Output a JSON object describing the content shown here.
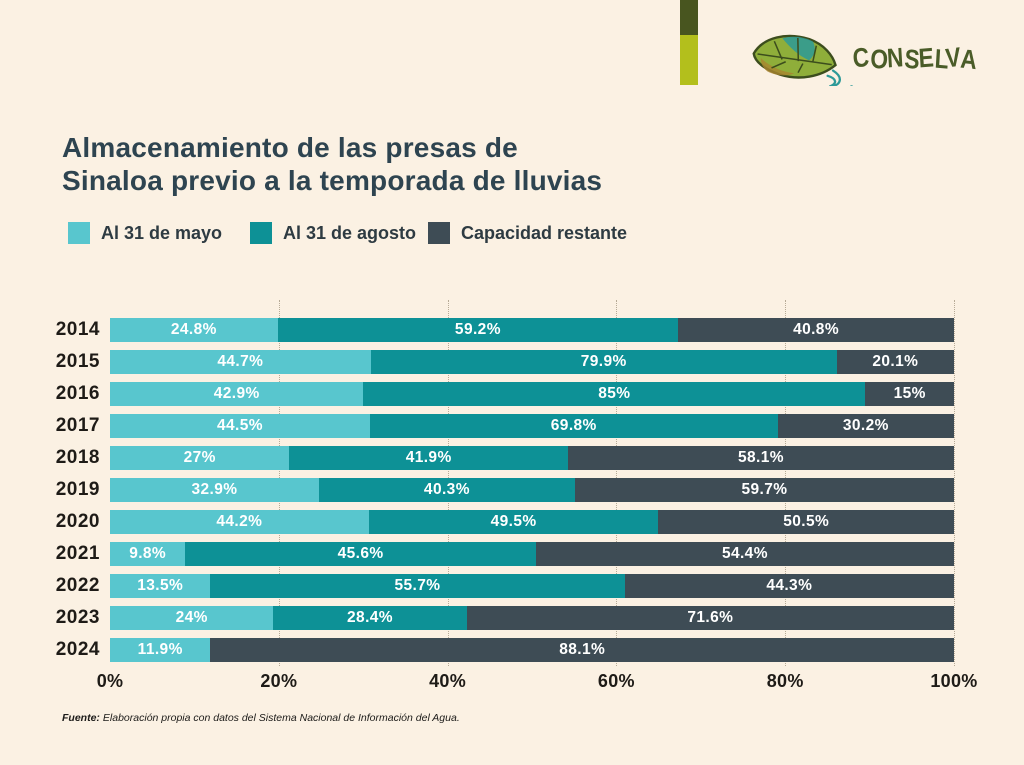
{
  "brand": {
    "name": "CONSELVA",
    "text_color": "#4a5c28",
    "accent_bar_dark": "#48551f",
    "accent_bar_lime": "#b3bf1c"
  },
  "header": {
    "title_line1": "Almacenamiento de las presas de",
    "title_line2": "Sinaloa previo a la temporada de lluvias"
  },
  "legend": [
    {
      "label": "Al 31 de mayo",
      "color": "#58c6ce"
    },
    {
      "label": "Al 31 de agosto",
      "color": "#0d9196"
    },
    {
      "label": "Capacidad restante",
      "color": "#3e4c55"
    }
  ],
  "chart_data": {
    "type": "bar",
    "orientation": "horizontal-stacked",
    "title": "Almacenamiento de las presas de Sinaloa previo a la temporada de lluvias",
    "categories": [
      "2014",
      "2015",
      "2016",
      "2017",
      "2018",
      "2019",
      "2020",
      "2021",
      "2022",
      "2023",
      "2024"
    ],
    "series": [
      {
        "name": "Al 31 de mayo",
        "color": "#58c6ce",
        "values": [
          24.8,
          44.7,
          42.9,
          44.5,
          27,
          32.9,
          44.2,
          9.8,
          13.5,
          24,
          11.9
        ],
        "labels": [
          "24.8%",
          "44.7%",
          "42.9%",
          "44.5%",
          "27%",
          "32.9%",
          "44.2%",
          "9.8%",
          "13.5%",
          "24%",
          "11.9%"
        ]
      },
      {
        "name": "Al 31 de agosto",
        "color": "#0d9196",
        "values": [
          59.2,
          79.9,
          85,
          69.8,
          41.9,
          40.3,
          49.5,
          45.6,
          55.7,
          28.4,
          null
        ],
        "labels": [
          "59.2%",
          "79.9%",
          "85%",
          "69.8%",
          "41.9%",
          "40.3%",
          "49.5%",
          "45.6%",
          "55.7%",
          "28.4%",
          null
        ]
      },
      {
        "name": "Capacidad restante",
        "color": "#3e4c55",
        "values": [
          40.8,
          20.1,
          15,
          30.2,
          58.1,
          59.7,
          50.5,
          54.4,
          44.3,
          71.6,
          88.1
        ],
        "labels": [
          "40.8%",
          "20.1%",
          "15%",
          "30.2%",
          "58.1%",
          "59.7%",
          "50.5%",
          "54.4%",
          "44.3%",
          "71.6%",
          "88.1%"
        ]
      }
    ],
    "x_axis": {
      "ticks": [
        0,
        20,
        40,
        60,
        80,
        100
      ],
      "tick_labels": [
        "0%",
        "20%",
        "40%",
        "60%",
        "80%",
        "100%"
      ]
    },
    "grid": "vertical dotted lines at 20% intervals",
    "legend_position": "top-left under title",
    "layout_note": "each row rendered as full-width stacked bar, segment widths proportional to value/sum of row"
  },
  "footer": {
    "source_label": "Fuente:",
    "source_text": "Elaboración propia con datos del Sistema Nacional de Información del Agua."
  },
  "colors": {
    "background": "#fbf1e3",
    "title_text": "#2e4450",
    "axis_text": "#1e1b17",
    "bar_label_text": "#ffffff",
    "gridline": "#b7ab97"
  }
}
